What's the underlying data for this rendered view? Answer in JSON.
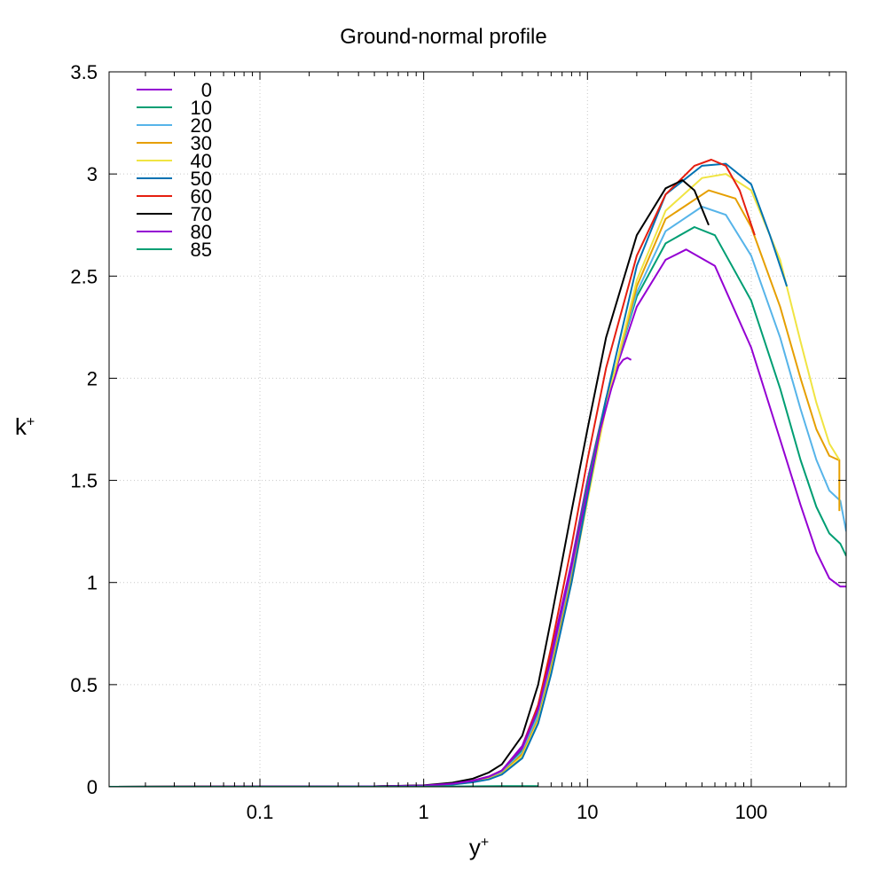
{
  "chart_data": {
    "type": "line",
    "title": "Ground-normal profile",
    "xlabel_base": "y",
    "xlabel_sup": "+",
    "ylabel_base": "k",
    "ylabel_sup": "+",
    "xscale": "log",
    "xlim": [
      0.012,
      380
    ],
    "ylim": [
      0,
      3.5
    ],
    "xticks": [
      {
        "value": 0.1,
        "label": "0.1"
      },
      {
        "value": 1,
        "label": "1"
      },
      {
        "value": 10,
        "label": "10"
      },
      {
        "value": 100,
        "label": "100"
      }
    ],
    "yticks": [
      {
        "value": 0,
        "label": "0"
      },
      {
        "value": 0.5,
        "label": "0.5"
      },
      {
        "value": 1,
        "label": "1"
      },
      {
        "value": 1.5,
        "label": "1.5"
      },
      {
        "value": 2,
        "label": "2"
      },
      {
        "value": 2.5,
        "label": "2.5"
      },
      {
        "value": 3,
        "label": "3"
      },
      {
        "value": 3.5,
        "label": "3.5"
      }
    ],
    "grid": true,
    "legend_position": "top-left",
    "series": [
      {
        "name": "0",
        "color": "#9400d3",
        "x": [
          0.012,
          0.5,
          1,
          1.5,
          2,
          2.5,
          3,
          4,
          5,
          6,
          8,
          10,
          13,
          20,
          30,
          40,
          60,
          100,
          150,
          200,
          250,
          300,
          350,
          380
        ],
        "y": [
          0,
          0.002,
          0.005,
          0.015,
          0.03,
          0.05,
          0.08,
          0.2,
          0.4,
          0.65,
          1.1,
          1.5,
          1.9,
          2.35,
          2.58,
          2.63,
          2.55,
          2.15,
          1.7,
          1.38,
          1.15,
          1.02,
          0.98,
          0.98
        ]
      },
      {
        "name": "10",
        "color": "#009e73",
        "x": [
          0.012,
          0.5,
          1,
          1.5,
          2,
          2.5,
          3,
          4,
          5,
          6,
          8,
          10,
          13,
          20,
          30,
          45,
          60,
          100,
          150,
          200,
          250,
          300,
          350,
          380
        ],
        "y": [
          0,
          0.002,
          0.005,
          0.013,
          0.027,
          0.045,
          0.075,
          0.18,
          0.37,
          0.62,
          1.08,
          1.48,
          1.9,
          2.4,
          2.66,
          2.74,
          2.7,
          2.38,
          1.95,
          1.6,
          1.37,
          1.24,
          1.19,
          1.13
        ]
      },
      {
        "name": "20",
        "color": "#56b4e9",
        "x": [
          0.012,
          0.5,
          1,
          1.5,
          2,
          2.5,
          3,
          4,
          5,
          6,
          8,
          10,
          13,
          20,
          30,
          50,
          70,
          100,
          150,
          200,
          250,
          300,
          350,
          380
        ],
        "y": [
          0,
          0.002,
          0.005,
          0.012,
          0.025,
          0.042,
          0.07,
          0.17,
          0.35,
          0.6,
          1.05,
          1.45,
          1.88,
          2.42,
          2.72,
          2.84,
          2.8,
          2.6,
          2.2,
          1.85,
          1.6,
          1.45,
          1.4,
          1.25
        ]
      },
      {
        "name": "30",
        "color": "#e69f00",
        "x": [
          0.012,
          0.5,
          1,
          1.5,
          2,
          2.5,
          3,
          4,
          5,
          6,
          8,
          10,
          13,
          20,
          30,
          55,
          80,
          100,
          150,
          200,
          250,
          300,
          340,
          345,
          345
        ],
        "y": [
          0,
          0.002,
          0.005,
          0.012,
          0.024,
          0.04,
          0.065,
          0.16,
          0.33,
          0.58,
          1.02,
          1.42,
          1.87,
          2.45,
          2.78,
          2.92,
          2.88,
          2.74,
          2.35,
          2.0,
          1.75,
          1.62,
          1.6,
          1.6,
          1.35
        ]
      },
      {
        "name": "40",
        "color": "#f0e442",
        "x": [
          0.012,
          0.5,
          1,
          1.5,
          2,
          2.5,
          3,
          4,
          5,
          6,
          8,
          10,
          13,
          20,
          30,
          50,
          70,
          100,
          150,
          200,
          250,
          300,
          345
        ],
        "y": [
          0,
          0.002,
          0.005,
          0.011,
          0.023,
          0.038,
          0.062,
          0.15,
          0.32,
          0.56,
          1.0,
          1.4,
          1.86,
          2.48,
          2.82,
          2.98,
          3.0,
          2.92,
          2.58,
          2.18,
          1.88,
          1.68,
          1.6
        ]
      },
      {
        "name": "50",
        "color": "#0072b2",
        "x": [
          0.012,
          0.5,
          1,
          1.5,
          2,
          2.5,
          3,
          4,
          5,
          6,
          8,
          10,
          13,
          20,
          30,
          50,
          70,
          100,
          130,
          165
        ],
        "y": [
          0,
          0.002,
          0.005,
          0.011,
          0.022,
          0.036,
          0.06,
          0.14,
          0.31,
          0.55,
          1.0,
          1.42,
          1.9,
          2.55,
          2.9,
          3.04,
          3.05,
          2.95,
          2.7,
          2.45
        ]
      },
      {
        "name": "60",
        "color": "#e51e10",
        "x": [
          0.012,
          0.5,
          1,
          1.5,
          2,
          2.5,
          3,
          4,
          5,
          6,
          8,
          10,
          13,
          20,
          30,
          45,
          57,
          70,
          85,
          105
        ],
        "y": [
          0,
          0.002,
          0.006,
          0.015,
          0.03,
          0.05,
          0.08,
          0.19,
          0.4,
          0.68,
          1.18,
          1.6,
          2.05,
          2.6,
          2.9,
          3.04,
          3.07,
          3.04,
          2.92,
          2.7
        ]
      },
      {
        "name": "70",
        "color": "#000000",
        "x": [
          0.012,
          0.5,
          1,
          1.5,
          2,
          2.5,
          3,
          4,
          5,
          6,
          8,
          10,
          13,
          20,
          30,
          38,
          45,
          55
        ],
        "y": [
          0,
          0.002,
          0.007,
          0.02,
          0.04,
          0.07,
          0.11,
          0.25,
          0.5,
          0.82,
          1.35,
          1.75,
          2.2,
          2.7,
          2.93,
          2.97,
          2.92,
          2.75
        ]
      },
      {
        "name": "80",
        "color": "#9400d3",
        "x": [
          0.012,
          0.5,
          1,
          1.5,
          2,
          2.5,
          3,
          4,
          5,
          6,
          8,
          10,
          12,
          14,
          15.5,
          16.5,
          17.5,
          18.5
        ],
        "y": [
          0,
          0.002,
          0.006,
          0.015,
          0.03,
          0.05,
          0.08,
          0.19,
          0.38,
          0.63,
          1.08,
          1.45,
          1.75,
          1.95,
          2.06,
          2.09,
          2.1,
          2.09
        ]
      },
      {
        "name": "85",
        "color": "#009e73",
        "x": [
          0.012,
          0.5,
          1,
          2,
          3,
          4,
          5
        ],
        "y": [
          0,
          0.0005,
          0.001,
          0.002,
          0.003,
          0.003,
          0.003
        ]
      }
    ]
  }
}
